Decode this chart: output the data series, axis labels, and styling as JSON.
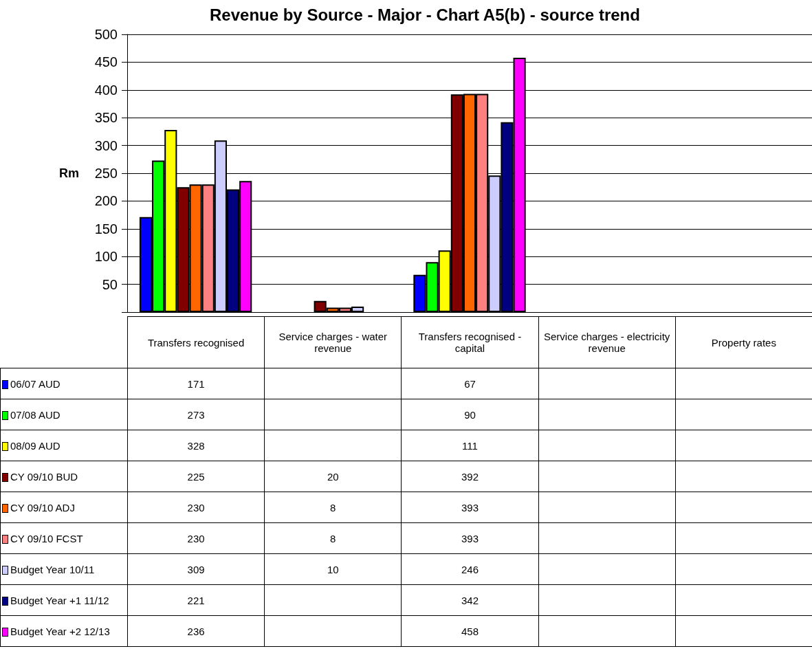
{
  "chart_data": {
    "type": "bar",
    "title": "Revenue by Source - Major - Chart A5(b) - source trend",
    "ylabel": "Rm",
    "categories": [
      "Transfers recognised",
      "Service charges - water revenue",
      "Transfers recognised - capital",
      "Service charges - electricity revenue",
      "Property rates"
    ],
    "series": [
      {
        "name": "06/07 AUD",
        "color": "#0000ff",
        "values": [
          171,
          null,
          67,
          null,
          null
        ]
      },
      {
        "name": "07/08 AUD",
        "color": "#00ff00",
        "values": [
          273,
          null,
          90,
          null,
          null
        ]
      },
      {
        "name": "08/09 AUD",
        "color": "#ffff00",
        "values": [
          328,
          null,
          111,
          null,
          null
        ]
      },
      {
        "name": "CY 09/10 BUD",
        "color": "#800000",
        "values": [
          225,
          20,
          392,
          null,
          null
        ]
      },
      {
        "name": "CY  09/10 ADJ",
        "color": "#ff6600",
        "values": [
          230,
          8,
          393,
          null,
          null
        ]
      },
      {
        "name": "CY 09/10 FCST",
        "color": "#ff8080",
        "values": [
          230,
          8,
          393,
          null,
          null
        ]
      },
      {
        "name": "Budget Year 10/11",
        "color": "#ccccff",
        "values": [
          309,
          10,
          246,
          null,
          null
        ]
      },
      {
        "name": "Budget Year +1 11/12",
        "color": "#000080",
        "values": [
          221,
          null,
          342,
          null,
          null
        ]
      },
      {
        "name": "Budget Year +2 12/13",
        "color": "#ff00ff",
        "values": [
          236,
          null,
          458,
          null,
          null
        ]
      }
    ],
    "ylim": [
      0,
      500
    ],
    "yticks": [
      {
        "value": 0,
        "label": null
      },
      50,
      100,
      150,
      200,
      250,
      300,
      350,
      400,
      450,
      500
    ],
    "grid": "y",
    "legend": "bottom",
    "data_labels": true
  }
}
